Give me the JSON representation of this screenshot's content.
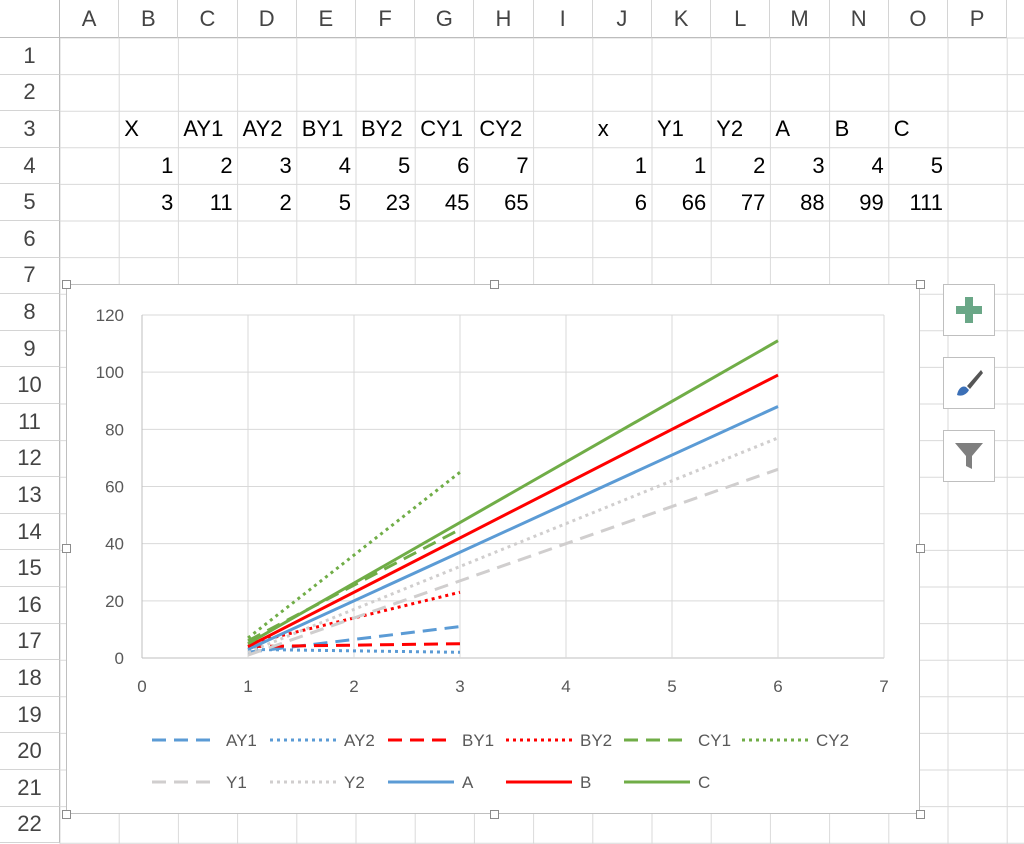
{
  "columns": [
    "A",
    "B",
    "C",
    "D",
    "E",
    "F",
    "G",
    "H",
    "I",
    "J",
    "K",
    "L",
    "M",
    "N",
    "O",
    "P"
  ],
  "rows": [
    "1",
    "2",
    "3",
    "4",
    "5",
    "6",
    "7",
    "8",
    "9",
    "10",
    "11",
    "12",
    "13",
    "14",
    "15",
    "16",
    "17",
    "18",
    "19",
    "20",
    "21",
    "22"
  ],
  "table1": {
    "headers": [
      "X",
      "AY1",
      "AY2",
      "BY1",
      "BY2",
      "CY1",
      "CY2"
    ],
    "row4": [
      "1",
      "2",
      "3",
      "4",
      "5",
      "6",
      "7"
    ],
    "row5": [
      "3",
      "11",
      "2",
      "5",
      "23",
      "45",
      "65"
    ]
  },
  "table2": {
    "headers": [
      "x",
      "Y1",
      "Y2",
      "A",
      "B",
      "C"
    ],
    "row4": [
      "1",
      "1",
      "2",
      "3",
      "4",
      "5"
    ],
    "row5": [
      "6",
      "66",
      "77",
      "88",
      "99",
      "111"
    ]
  },
  "chart_data": {
    "type": "scatter",
    "xlim": [
      0,
      7
    ],
    "ylim": [
      0,
      120
    ],
    "x_ticks": [
      "0",
      "1",
      "2",
      "3",
      "4",
      "5",
      "6",
      "7"
    ],
    "y_ticks": [
      "0",
      "20",
      "40",
      "60",
      "80",
      "100",
      "120"
    ],
    "grid": true,
    "legend_position": "bottom",
    "series": [
      {
        "name": "AY1",
        "x": [
          1,
          3
        ],
        "y": [
          2,
          11
        ],
        "color": "#5b9bd5",
        "dash": "dash"
      },
      {
        "name": "AY2",
        "x": [
          1,
          3
        ],
        "y": [
          3,
          2
        ],
        "color": "#5b9bd5",
        "dash": "dot"
      },
      {
        "name": "BY1",
        "x": [
          1,
          3
        ],
        "y": [
          4,
          5
        ],
        "color": "#ff0000",
        "dash": "dash"
      },
      {
        "name": "BY2",
        "x": [
          1,
          3
        ],
        "y": [
          5,
          23
        ],
        "color": "#ff0000",
        "dash": "dot"
      },
      {
        "name": "CY1",
        "x": [
          1,
          3
        ],
        "y": [
          6,
          45
        ],
        "color": "#70ad47",
        "dash": "dash"
      },
      {
        "name": "CY2",
        "x": [
          1,
          3
        ],
        "y": [
          7,
          65
        ],
        "color": "#70ad47",
        "dash": "dot"
      },
      {
        "name": "Y1",
        "x": [
          1,
          6
        ],
        "y": [
          1,
          66
        ],
        "color": "#d0cece",
        "dash": "dash"
      },
      {
        "name": "Y2",
        "x": [
          1,
          6
        ],
        "y": [
          2,
          77
        ],
        "color": "#d0cece",
        "dash": "dot"
      },
      {
        "name": "A",
        "x": [
          1,
          6
        ],
        "y": [
          3,
          88
        ],
        "color": "#5b9bd5",
        "dash": "solid"
      },
      {
        "name": "B",
        "x": [
          1,
          6
        ],
        "y": [
          4,
          99
        ],
        "color": "#ff0000",
        "dash": "solid"
      },
      {
        "name": "C",
        "x": [
          1,
          6
        ],
        "y": [
          5,
          111
        ],
        "color": "#70ad47",
        "dash": "solid"
      }
    ]
  },
  "side_buttons": [
    {
      "icon": "plus-icon",
      "color": "#6aa787"
    },
    {
      "icon": "brush-icon",
      "color": "#3b6fb6"
    },
    {
      "icon": "filter-icon",
      "color": "#7f7f7f"
    }
  ]
}
